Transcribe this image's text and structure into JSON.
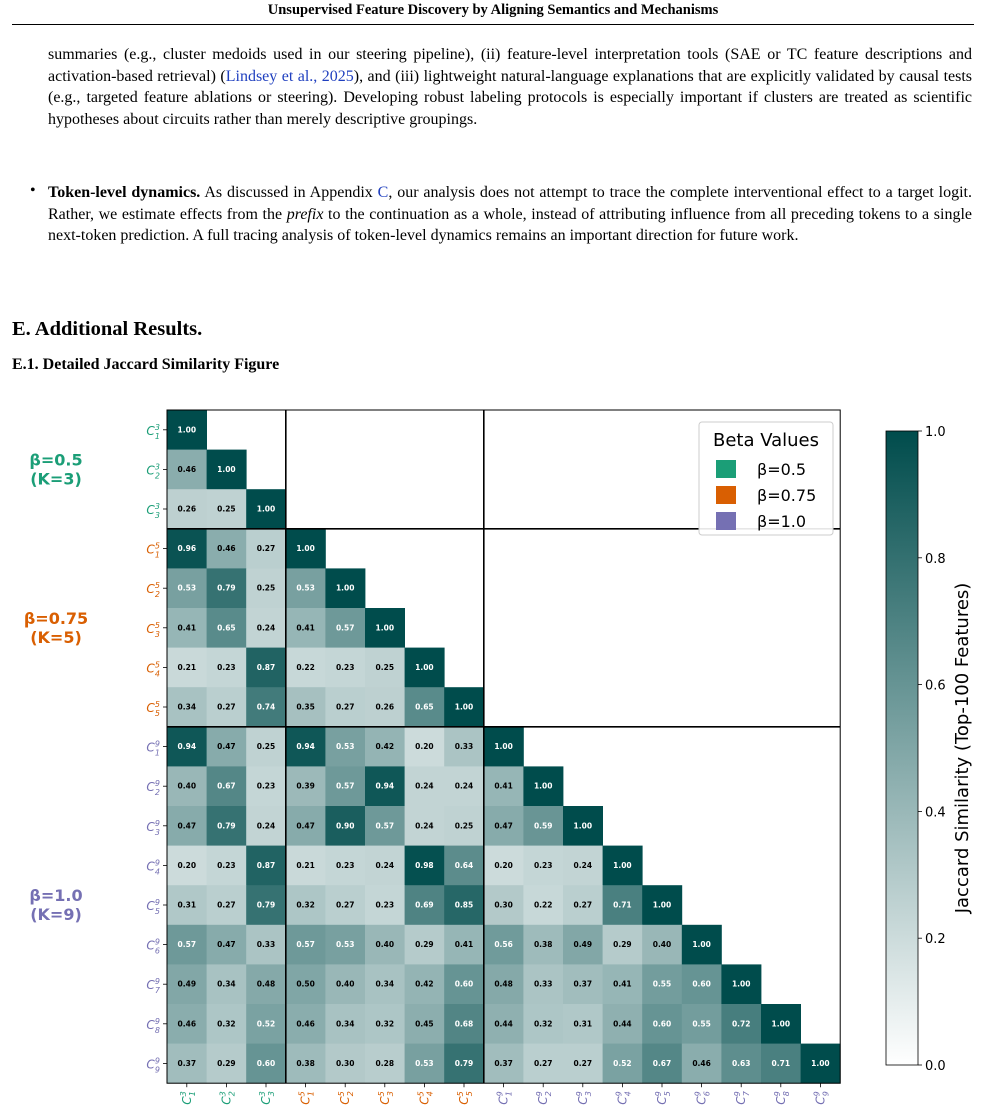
{
  "header": {
    "running_title": "Unsupervised Feature Discovery by Aligning Semantics and Mechanisms"
  },
  "para1": {
    "t1": "summaries (e.g., cluster medoids used in our steering pipeline), (ii) feature-level interpretation tools (SAE or TC feature descriptions and activation-based retrieval) (",
    "cite": "Lindsey et al., 2025",
    "t2": "), and (iii) lightweight natural-language explanations that are explicitly validated by causal tests (e.g., targeted feature ablations or steering). Developing robust labeling protocols is especially important if clusters are treated as scientific hypotheses about circuits rather than merely descriptive groupings."
  },
  "bullet": {
    "symbol": "•",
    "bold": "Token-level dynamics.",
    "t1": " As discussed in Appendix ",
    "appendix_ref": "C",
    "t2": ", our analysis does not attempt to trace the complete interventional effect to a target logit. Rather, we estimate effects from the ",
    "italic": "prefix",
    "t3": " to the continuation as a whole, instead of attributing influence from all preceding tokens to a single next-token prediction. A full tracing analysis of token-level dynamics remains an important direction for future work."
  },
  "section": {
    "title": "E. Additional Results."
  },
  "subsection": {
    "title": "E.1. Detailed Jaccard Similarity Figure"
  },
  "chart_data": {
    "type": "heatmap",
    "colormap": {
      "low": "#ffffff",
      "high": "#004c4c"
    },
    "groups": [
      {
        "label": "β=0.5",
        "sub": "(K=3)",
        "color": "#1b9e77",
        "k": 3
      },
      {
        "label": "β=0.75",
        "sub": "(K=5)",
        "color": "#d95f02",
        "k": 5
      },
      {
        "label": "β=1.0",
        "sub": "(K=9)",
        "color": "#7570b3",
        "k": 9
      }
    ],
    "matrix": [
      [
        1.0
      ],
      [
        0.46,
        1.0
      ],
      [
        0.26,
        0.25,
        1.0
      ],
      [
        0.96,
        0.46,
        0.27,
        1.0
      ],
      [
        0.53,
        0.79,
        0.25,
        0.53,
        1.0
      ],
      [
        0.41,
        0.65,
        0.24,
        0.41,
        0.57,
        1.0
      ],
      [
        0.21,
        0.23,
        0.87,
        0.22,
        0.23,
        0.25,
        1.0
      ],
      [
        0.34,
        0.27,
        0.74,
        0.35,
        0.27,
        0.26,
        0.65,
        1.0
      ],
      [
        0.94,
        0.47,
        0.25,
        0.94,
        0.53,
        0.42,
        0.2,
        0.33,
        1.0
      ],
      [
        0.4,
        0.67,
        0.23,
        0.39,
        0.57,
        0.94,
        0.24,
        0.24,
        0.41,
        1.0
      ],
      [
        0.47,
        0.79,
        0.24,
        0.47,
        0.9,
        0.57,
        0.24,
        0.25,
        0.47,
        0.59,
        1.0
      ],
      [
        0.2,
        0.23,
        0.87,
        0.21,
        0.23,
        0.24,
        0.98,
        0.64,
        0.2,
        0.23,
        0.24,
        1.0
      ],
      [
        0.31,
        0.27,
        0.79,
        0.32,
        0.27,
        0.23,
        0.69,
        0.85,
        0.3,
        0.22,
        0.27,
        0.71,
        1.0
      ],
      [
        0.57,
        0.47,
        0.33,
        0.57,
        0.53,
        0.4,
        0.29,
        0.41,
        0.56,
        0.38,
        0.49,
        0.29,
        0.4,
        1.0
      ],
      [
        0.49,
        0.34,
        0.48,
        0.5,
        0.4,
        0.34,
        0.42,
        0.6,
        0.48,
        0.33,
        0.37,
        0.41,
        0.55,
        0.6,
        1.0
      ],
      [
        0.46,
        0.32,
        0.52,
        0.46,
        0.34,
        0.32,
        0.45,
        0.68,
        0.44,
        0.32,
        0.31,
        0.44,
        0.6,
        0.55,
        0.72,
        1.0
      ],
      [
        0.37,
        0.29,
        0.6,
        0.38,
        0.3,
        0.28,
        0.53,
        0.79,
        0.37,
        0.27,
        0.27,
        0.52,
        0.67,
        0.46,
        0.63,
        0.71,
        1.0
      ]
    ],
    "legend": {
      "title": "Beta Values",
      "entries": [
        {
          "label": "β=0.5",
          "color": "#1b9e77"
        },
        {
          "label": "β=0.75",
          "color": "#d95f02"
        },
        {
          "label": "β=1.0",
          "color": "#7570b3"
        }
      ]
    },
    "colorbar": {
      "label": "Jaccard Similarity (Top-100 Features)",
      "ticks": [
        "0.0",
        "0.2",
        "0.4",
        "0.6",
        "0.8",
        "1.0"
      ],
      "range": [
        0,
        1
      ]
    }
  }
}
